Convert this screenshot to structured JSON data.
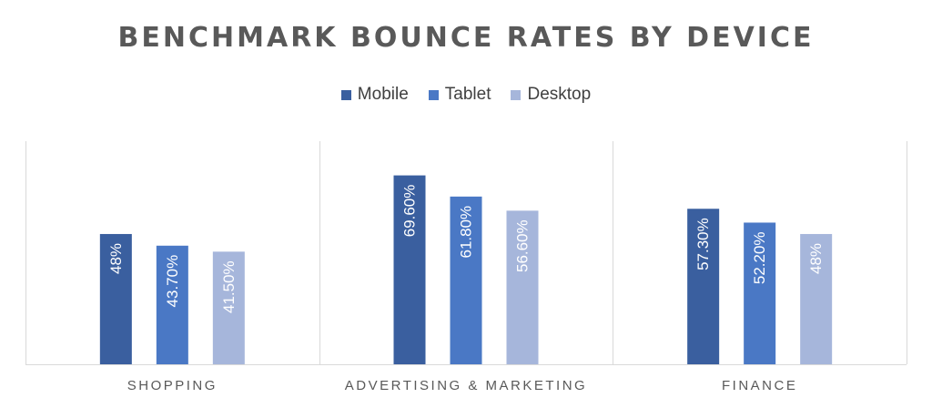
{
  "chart_data": {
    "type": "bar",
    "title": "BENCHMARK BOUNCE RATES BY DEVICE",
    "categories": [
      "SHOPPING",
      "ADVERTISING & MARKETING",
      "FINANCE"
    ],
    "series": [
      {
        "name": "Mobile",
        "color": "#3a5f9f",
        "values": [
          48,
          69.6,
          57.3
        ],
        "labels": [
          "48%",
          "69.60%",
          "57.30%"
        ]
      },
      {
        "name": "Tablet",
        "color": "#4a78c5",
        "values": [
          43.7,
          61.8,
          52.2
        ],
        "labels": [
          "43.70%",
          "61.80%",
          "52.20%"
        ]
      },
      {
        "name": "Desktop",
        "color": "#a6b6db",
        "values": [
          41.5,
          56.6,
          48
        ],
        "labels": [
          "41.50%",
          "56.60%",
          "48%"
        ]
      }
    ],
    "ylim": [
      0,
      80
    ],
    "legend_position": "top-center",
    "grid": "vertical category separators"
  }
}
